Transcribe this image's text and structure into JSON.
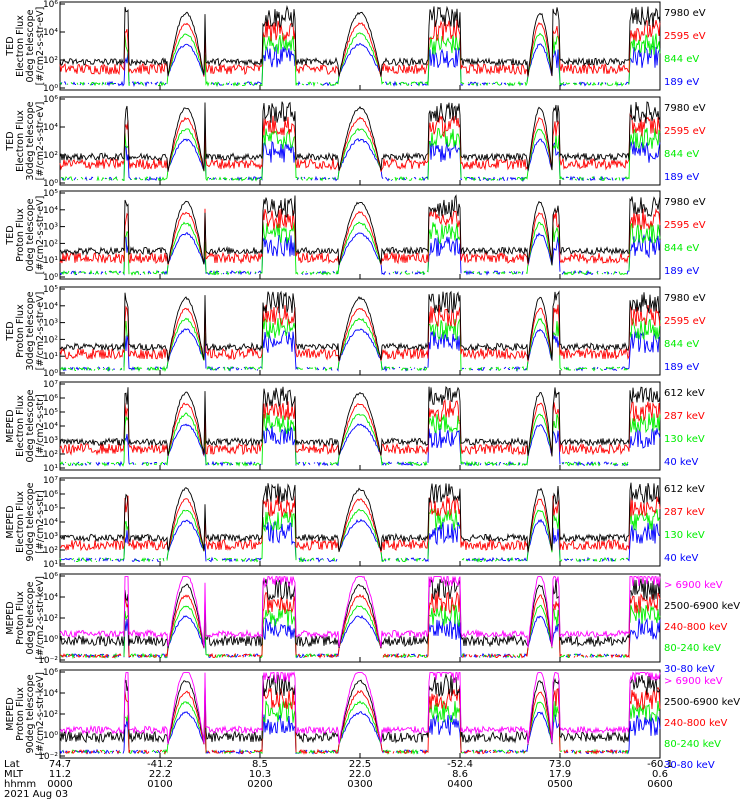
{
  "colors": {
    "black": "#000000",
    "red": "#ff0000",
    "green": "#00ee00",
    "blue": "#0000ff",
    "magenta": "#ff00ff"
  },
  "chart_data": [
    {
      "type": "line",
      "ylabel": [
        "TED",
        "Electron Flux",
        "0deg telescope",
        "[#/cm2-s-str-eV]"
      ],
      "ytick_labels": [
        "10⁶",
        "10⁴",
        "10²",
        "10⁰"
      ],
      "ylim_log": [
        0,
        6
      ],
      "legend": [
        {
          "name": "7980 eV",
          "color": "#000000"
        },
        {
          "name": "2595 eV",
          "color": "#ff0000"
        },
        {
          "name": "844 eV",
          "color": "#00ee00"
        },
        {
          "name": "189 eV",
          "color": "#0000ff"
        }
      ]
    },
    {
      "type": "line",
      "ylabel": [
        "TED",
        "Electron Flux",
        "30deg telescope",
        "[#/cm2-s-str-eV]"
      ],
      "ytick_labels": [
        "10⁶",
        "10⁴",
        "10²",
        "10⁰"
      ],
      "ylim_log": [
        0,
        6
      ],
      "legend": [
        {
          "name": "7980 eV",
          "color": "#000000"
        },
        {
          "name": "2595 eV",
          "color": "#ff0000"
        },
        {
          "name": "844 eV",
          "color": "#00ee00"
        },
        {
          "name": "189 eV",
          "color": "#0000ff"
        }
      ]
    },
    {
      "type": "line",
      "ylabel": [
        "TED",
        "Proton Flux",
        "0deg telescope",
        "[#/cm2-s-str-eV]"
      ],
      "ytick_labels": [
        "10⁵",
        "10⁴",
        "10³",
        "10²",
        "10¹",
        "10⁰"
      ],
      "ylim_log": [
        0,
        5
      ],
      "legend": [
        {
          "name": "7980 eV",
          "color": "#000000"
        },
        {
          "name": "2595 eV",
          "color": "#ff0000"
        },
        {
          "name": "844 eV",
          "color": "#00ee00"
        },
        {
          "name": "189 eV",
          "color": "#0000ff"
        }
      ]
    },
    {
      "type": "line",
      "ylabel": [
        "TED",
        "Proton Flux",
        "30deg telescope",
        "[#/cm2-s-str-eV]"
      ],
      "ytick_labels": [
        "10⁵",
        "10⁴",
        "10³",
        "10²",
        "10¹",
        "10⁰"
      ],
      "ylim_log": [
        0,
        5
      ],
      "legend": [
        {
          "name": "7980 eV",
          "color": "#000000"
        },
        {
          "name": "2595 eV",
          "color": "#ff0000"
        },
        {
          "name": "844 eV",
          "color": "#00ee00"
        },
        {
          "name": "189 eV",
          "color": "#0000ff"
        }
      ]
    },
    {
      "type": "line",
      "ylabel": [
        "MEPED",
        "Electron Flux",
        "0deg telescope",
        "[#/cm2-s-str]"
      ],
      "ytick_labels": [
        "10⁷",
        "10⁶",
        "10⁵",
        "10⁴",
        "10³",
        "10²",
        "10¹"
      ],
      "ylim_log": [
        1,
        7
      ],
      "legend": [
        {
          "name": "612 keV",
          "color": "#000000"
        },
        {
          "name": "287 keV",
          "color": "#ff0000"
        },
        {
          "name": "130 keV",
          "color": "#00ee00"
        },
        {
          "name": "40 keV",
          "color": "#0000ff"
        }
      ]
    },
    {
      "type": "line",
      "ylabel": [
        "MEPED",
        "Electron Flux",
        "90deg telescope",
        "[#/cm2-s-str]"
      ],
      "ytick_labels": [
        "10⁷",
        "10⁶",
        "10⁵",
        "10⁴",
        "10³",
        "10²",
        "10¹"
      ],
      "ylim_log": [
        1,
        7
      ],
      "legend": [
        {
          "name": "612 keV",
          "color": "#000000"
        },
        {
          "name": "287 keV",
          "color": "#ff0000"
        },
        {
          "name": "130 keV",
          "color": "#00ee00"
        },
        {
          "name": "40 keV",
          "color": "#0000ff"
        }
      ]
    },
    {
      "type": "line",
      "ylabel": [
        "MEPED",
        "Proton Flux",
        "0deg telescope",
        "[#/cm2-s-str-keV]"
      ],
      "ytick_labels": [
        "10⁶",
        "10⁴",
        "10²",
        "10⁰",
        "10⁻²"
      ],
      "ylim_log": [
        -2,
        6
      ],
      "legend": [
        {
          "name": "> 6900 keV",
          "color": "#ff00ff"
        },
        {
          "name": "2500-6900 keV",
          "color": "#000000"
        },
        {
          "name": "240-800 keV",
          "color": "#ff0000"
        },
        {
          "name": "80-240 keV",
          "color": "#00ee00"
        },
        {
          "name": "30-80 keV",
          "color": "#0000ff"
        }
      ]
    },
    {
      "type": "line",
      "ylabel": [
        "MEPED",
        "Proton Flux",
        "90deg telescope",
        "[#/cm2-s-str-keV]"
      ],
      "ytick_labels": [
        "10⁶",
        "10⁴",
        "10²",
        "10⁰",
        "10⁻²"
      ],
      "ylim_log": [
        -2,
        6
      ],
      "legend": [
        {
          "name": "> 6900 keV",
          "color": "#ff00ff"
        },
        {
          "name": "2500-6900 keV",
          "color": "#000000"
        },
        {
          "name": "240-800 keV",
          "color": "#ff0000"
        },
        {
          "name": "80-240 keV",
          "color": "#00ee00"
        },
        {
          "name": "30-80 keV",
          "color": "#0000ff"
        }
      ]
    }
  ],
  "x_axis": {
    "row_labels": [
      "Lat",
      "MLT",
      "hhmm"
    ],
    "ticks": [
      {
        "lat": "74.7",
        "mlt": "11.2",
        "time": "0000",
        "frac": 0.0
      },
      {
        "lat": "-41.2",
        "mlt": "22.2",
        "time": "0100",
        "frac": 0.1667
      },
      {
        "lat": "8.5",
        "mlt": "10.3",
        "time": "0200",
        "frac": 0.3333
      },
      {
        "lat": "22.5",
        "mlt": "22.0",
        "time": "0300",
        "frac": 0.5
      },
      {
        "lat": "-52.4",
        "mlt": "8.6",
        "time": "0400",
        "frac": 0.6667
      },
      {
        "lat": "73.0",
        "mlt": "17.9",
        "time": "0500",
        "frac": 0.8333
      },
      {
        "lat": "-60.1",
        "mlt": "0.6",
        "time": "0600",
        "frac": 1.0
      }
    ],
    "date": "2021 Aug 03"
  }
}
